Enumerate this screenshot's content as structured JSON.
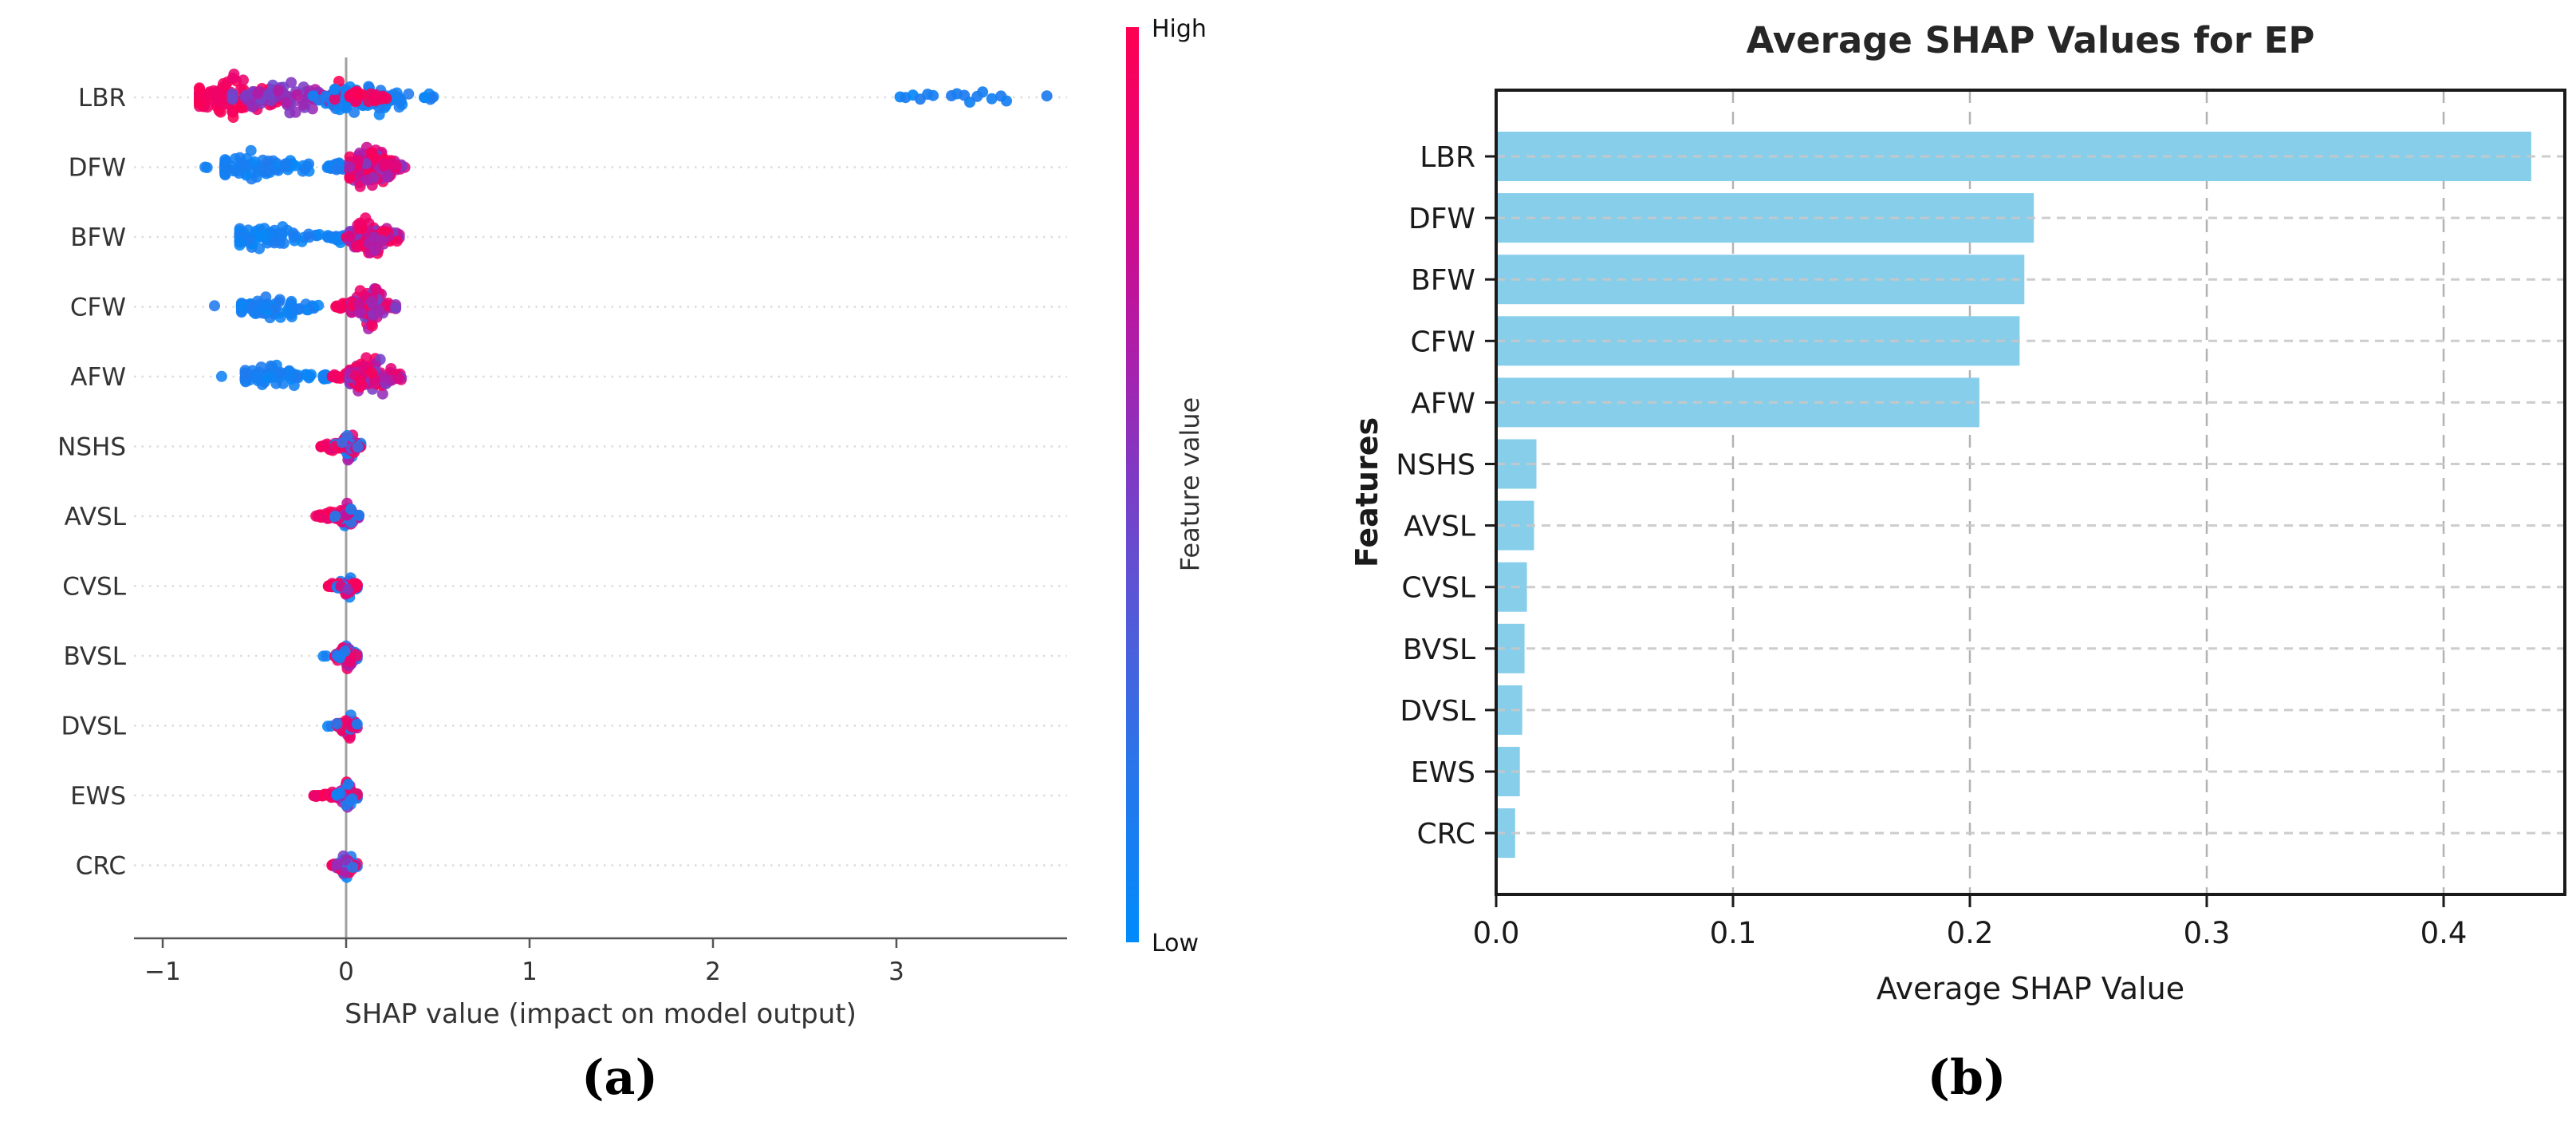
{
  "figure": {
    "caption_a": "(a)",
    "caption_b": "(b)"
  },
  "colors": {
    "background": "#ffffff",
    "bar_fill": "#87ceeb",
    "axis_dark": "#1a1a1a",
    "axis_gray": "#555555",
    "zero_line": "#a0a0a0",
    "row_dots": "#dcdcdc",
    "vgrid": "#b3b3b3",
    "hgrid": "#c8c8c8",
    "label_text": "#333333",
    "shap_high": "#ff0051",
    "shap_low": "#008bfb"
  },
  "chart_data": [
    {
      "type": "scatter",
      "subtype": "shap-beeswarm-summary",
      "xlabel": "SHAP value (impact on model output)",
      "x_ticks": [
        -1,
        0,
        1,
        2,
        3
      ],
      "xlim": [
        -1.15,
        3.93
      ],
      "grid": "dotted-rows",
      "legend_position": "colorbar-right",
      "colorbar": {
        "high_label": "High",
        "low_label": "Low",
        "title": "Feature value",
        "stops": [
          {
            "t": 0.0,
            "c": "#008bfb"
          },
          {
            "t": 0.2,
            "c": "#2b74e9"
          },
          {
            "t": 0.4,
            "c": "#5f52d3"
          },
          {
            "t": 0.52,
            "c": "#8138c2"
          },
          {
            "t": 0.63,
            "c": "#a721ae"
          },
          {
            "t": 0.75,
            "c": "#c90e92"
          },
          {
            "t": 0.87,
            "c": "#e80473"
          },
          {
            "t": 1.0,
            "c": "#ff0051"
          }
        ]
      },
      "features": [
        {
          "name": "LBR",
          "segments": [
            {
              "x0": -0.8,
              "x1": -0.3,
              "n": 125,
              "palette": "red",
              "half": 42,
              "peak": 0.38
            },
            {
              "x0": -0.62,
              "x1": -0.04,
              "n": 85,
              "palette": "purple",
              "half": 33,
              "peak": 0.5
            },
            {
              "x0": -0.18,
              "x1": 0.1,
              "n": 60,
              "palette": "bluered",
              "half": 27,
              "peak": 0.5
            },
            {
              "x0": 0.0,
              "x1": 0.48,
              "n": 85,
              "palette": "blue",
              "half": 33,
              "peak": 0.3
            },
            {
              "x0": 0.02,
              "x1": 0.22,
              "n": 25,
              "palette": "red",
              "half": 20,
              "peak": 0.4
            }
          ],
          "outliers": {
            "x": [
              3.02,
              3.05,
              3.09,
              3.13,
              3.17,
              3.2,
              3.3,
              3.33,
              3.37,
              3.4,
              3.44,
              3.47,
              3.52,
              3.57,
              3.6,
              3.82
            ],
            "palette": "blue"
          }
        },
        {
          "name": "DFW",
          "segments": [
            {
              "x0": -0.77,
              "x1": -0.72,
              "n": 2,
              "palette": "blue",
              "half": 6,
              "peak": 0.5
            },
            {
              "x0": -0.66,
              "x1": -0.1,
              "n": 85,
              "palette": "blue",
              "half": 25,
              "peak": 0.3
            },
            {
              "x0": -0.1,
              "x1": 0.02,
              "n": 30,
              "palette": "blue",
              "half": 10,
              "peak": 0.5
            },
            {
              "x0": 0.02,
              "x1": 0.32,
              "n": 115,
              "palette": "redpurple",
              "half": 42,
              "peak": 0.35
            }
          ]
        },
        {
          "name": "BFW",
          "segments": [
            {
              "x0": -0.58,
              "x1": -0.1,
              "n": 75,
              "palette": "blue",
              "half": 23,
              "peak": 0.3
            },
            {
              "x0": -0.1,
              "x1": 0.02,
              "n": 28,
              "palette": "blue",
              "half": 9,
              "peak": 0.5
            },
            {
              "x0": -0.01,
              "x1": 0.01,
              "n": 2,
              "palette": "red",
              "half": 4,
              "peak": 0.5
            },
            {
              "x0": 0.02,
              "x1": 0.29,
              "n": 105,
              "palette": "redpurple",
              "half": 40,
              "peak": 0.4
            }
          ]
        },
        {
          "name": "CFW",
          "segments": [
            {
              "x0": -0.73,
              "x1": -0.71,
              "n": 1,
              "palette": "blue",
              "half": 4,
              "peak": 0.5
            },
            {
              "x0": -0.57,
              "x1": -0.1,
              "n": 72,
              "palette": "blue",
              "half": 23,
              "peak": 0.35
            },
            {
              "x0": -0.06,
              "x1": 0.05,
              "n": 22,
              "palette": "red",
              "half": 9,
              "peak": 0.5
            },
            {
              "x0": 0.03,
              "x1": 0.27,
              "n": 100,
              "palette": "redpurple",
              "half": 39,
              "peak": 0.4
            }
          ]
        },
        {
          "name": "AFW",
          "segments": [
            {
              "x0": -0.69,
              "x1": -0.67,
              "n": 1,
              "palette": "blue",
              "half": 4,
              "peak": 0.5
            },
            {
              "x0": -0.55,
              "x1": -0.1,
              "n": 72,
              "palette": "blue",
              "half": 23,
              "peak": 0.35
            },
            {
              "x0": -0.08,
              "x1": 0.04,
              "n": 24,
              "palette": "red",
              "half": 9,
              "peak": 0.5
            },
            {
              "x0": 0.02,
              "x1": 0.3,
              "n": 105,
              "palette": "redpurple",
              "half": 41,
              "peak": 0.4
            }
          ]
        },
        {
          "name": "NSHS",
          "segments": [
            {
              "x0": -0.14,
              "x1": -0.02,
              "n": 22,
              "palette": "red",
              "half": 9,
              "peak": 0.6
            },
            {
              "x0": -0.06,
              "x1": 0.08,
              "n": 70,
              "palette": "mixed",
              "half": 28,
              "peak": 0.5
            }
          ]
        },
        {
          "name": "AVSL",
          "segments": [
            {
              "x0": -0.17,
              "x1": -0.03,
              "n": 22,
              "palette": "red",
              "half": 9,
              "peak": 0.6
            },
            {
              "x0": -0.06,
              "x1": 0.07,
              "n": 68,
              "palette": "mixed",
              "half": 27,
              "peak": 0.5
            }
          ]
        },
        {
          "name": "CVSL",
          "segments": [
            {
              "x0": -0.1,
              "x1": -0.02,
              "n": 16,
              "palette": "red",
              "half": 8,
              "peak": 0.6
            },
            {
              "x0": -0.05,
              "x1": 0.06,
              "n": 62,
              "palette": "mixed",
              "half": 26,
              "peak": 0.5
            }
          ]
        },
        {
          "name": "BVSL",
          "segments": [
            {
              "x0": -0.13,
              "x1": -0.1,
              "n": 2,
              "palette": "blue",
              "half": 5,
              "peak": 0.5
            },
            {
              "x0": -0.07,
              "x1": -0.02,
              "n": 14,
              "palette": "red",
              "half": 8,
              "peak": 0.6
            },
            {
              "x0": -0.05,
              "x1": 0.06,
              "n": 62,
              "palette": "mixed",
              "half": 26,
              "peak": 0.5
            }
          ]
        },
        {
          "name": "DVSL",
          "segments": [
            {
              "x0": -0.11,
              "x1": -0.08,
              "n": 2,
              "palette": "blue",
              "half": 5,
              "peak": 0.5
            },
            {
              "x0": -0.05,
              "x1": 0.06,
              "n": 64,
              "palette": "mixed",
              "half": 26,
              "peak": 0.5
            }
          ]
        },
        {
          "name": "EWS",
          "segments": [
            {
              "x0": -0.19,
              "x1": -0.02,
              "n": 32,
              "palette": "red",
              "half": 7,
              "peak": 0.7
            },
            {
              "x0": -0.05,
              "x1": 0.06,
              "n": 66,
              "palette": "mixed",
              "half": 28,
              "peak": 0.5
            }
          ]
        },
        {
          "name": "CRC",
          "segments": [
            {
              "x0": -0.08,
              "x1": -0.02,
              "n": 14,
              "palette": "red",
              "half": 8,
              "peak": 0.6
            },
            {
              "x0": -0.05,
              "x1": 0.06,
              "n": 62,
              "palette": "mixed",
              "half": 26,
              "peak": 0.5
            }
          ]
        }
      ]
    },
    {
      "type": "bar",
      "orientation": "horizontal",
      "title": "Average SHAP Values for EP",
      "xlabel": "Average SHAP Value",
      "ylabel": "Features",
      "categories": [
        "LBR",
        "DFW",
        "BFW",
        "CFW",
        "AFW",
        "NSHS",
        "AVSL",
        "CVSL",
        "BVSL",
        "DVSL",
        "EWS",
        "CRC"
      ],
      "values": [
        0.437,
        0.227,
        0.223,
        0.221,
        0.204,
        0.017,
        0.016,
        0.013,
        0.012,
        0.011,
        0.01,
        0.008
      ],
      "x_ticks": [
        0.0,
        0.1,
        0.2,
        0.3,
        0.4
      ],
      "x_tick_labels": [
        "0.0",
        "0.1",
        "0.2",
        "0.3",
        "0.4"
      ],
      "xlim": [
        0,
        0.451
      ],
      "grid": "dashed",
      "bar_color": "#87ceeb"
    }
  ]
}
